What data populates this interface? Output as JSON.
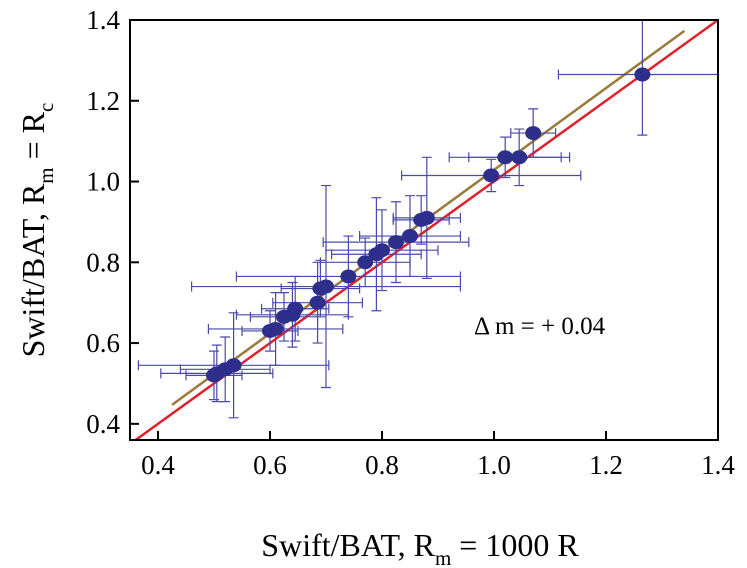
{
  "chart_data": {
    "type": "scatter",
    "x_label": [
      "Swift/BAT, R",
      "m",
      " = 1000 R"
    ],
    "y_label": [
      "Swift/BAT, R",
      "m",
      " = R",
      "c"
    ],
    "annotation": "Δ m = + 0.04",
    "xlim": [
      0.35,
      1.4
    ],
    "ylim": [
      0.36,
      1.4
    ],
    "xticks": [
      {
        "value": 0.4,
        "label": "0.4"
      },
      {
        "value": 0.6,
        "label": "0.6"
      },
      {
        "value": 0.8,
        "label": "0.8"
      },
      {
        "value": 1.0,
        "label": "1.0"
      },
      {
        "value": 1.2,
        "label": "1.2"
      },
      {
        "value": 1.4,
        "label": "1.4"
      }
    ],
    "yticks": [
      {
        "value": 0.4,
        "label": "0.4"
      },
      {
        "value": 0.6,
        "label": "0.6"
      },
      {
        "value": 0.8,
        "label": "0.8"
      },
      {
        "value": 1.0,
        "label": "1.0"
      },
      {
        "value": 1.2,
        "label": "1.2"
      },
      {
        "value": 1.4,
        "label": "1.4"
      }
    ],
    "reference_lines": [
      {
        "color": "#e0202a",
        "x": [
          0.35,
          1.4
        ],
        "y": [
          0.35,
          1.4
        ]
      },
      {
        "color": "#9a7b3a",
        "x": [
          0.425,
          1.34
        ],
        "y": [
          0.447,
          1.373
        ]
      }
    ],
    "series": [
      {
        "color": "#2e2e8c",
        "error_color": "#4a4aaa",
        "x": [
          1.265,
          1.07,
          1.045,
          1.02,
          0.995,
          0.88,
          0.87,
          0.85,
          0.825,
          0.8,
          0.79,
          0.77,
          0.74,
          0.7,
          0.69,
          0.685,
          0.645,
          0.64,
          0.625,
          0.61,
          0.6,
          0.535,
          0.52,
          0.505,
          0.5
        ],
        "values": [
          1.265,
          1.12,
          1.06,
          1.06,
          1.015,
          0.91,
          0.905,
          0.865,
          0.85,
          0.83,
          0.82,
          0.8,
          0.765,
          0.74,
          0.735,
          0.7,
          0.685,
          0.67,
          0.665,
          0.635,
          0.63,
          0.545,
          0.535,
          0.525,
          0.52
        ],
        "xerr": [
          0.15,
          0.04,
          0.09,
          0.1,
          0.16,
          0.06,
          0.05,
          0.09,
          0.13,
          0.1,
          0.08,
          0.08,
          0.2,
          0.24,
          0.07,
          0.08,
          0.06,
          0.1,
          0.06,
          0.12,
          0.05,
          0.17,
          0.08,
          0.1,
          0.05
        ],
        "yerr": [
          0.15,
          0.06,
          0.07,
          0.05,
          0.04,
          0.15,
          0.06,
          0.1,
          0.1,
          0.1,
          0.14,
          0.06,
          0.1,
          0.25,
          0.07,
          0.1,
          0.08,
          0.08,
          0.06,
          0.09,
          0.05,
          0.13,
          0.08,
          0.07,
          0.06
        ]
      }
    ]
  }
}
